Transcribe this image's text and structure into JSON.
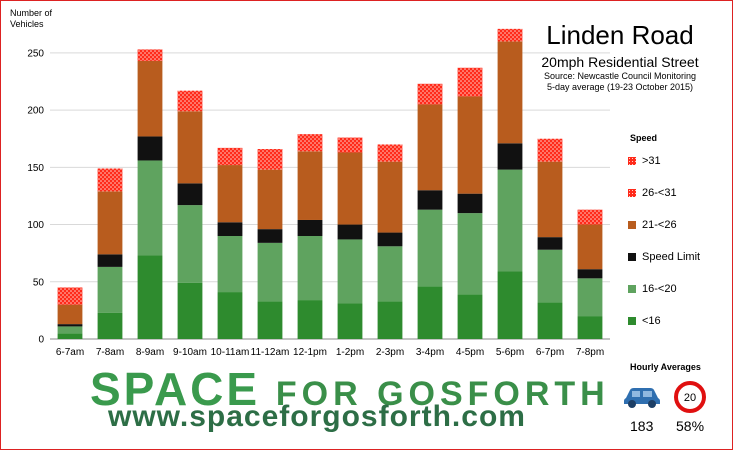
{
  "chart_data": {
    "type": "bar",
    "stacked": true,
    "title": "Linden Road",
    "subtitle": "20mph Residential Street",
    "source": "Source: Newcastle Council Monitoring",
    "period": "5-day average (19-23 October 2015)",
    "ylabel": "Number of Vehicles",
    "xlabel": "",
    "ylim": [
      0,
      270
    ],
    "yticks": [
      0,
      50,
      100,
      150,
      200,
      250
    ],
    "grid": true,
    "legend_title": "Speed",
    "legend_position": "right",
    "categories": [
      "6-7am",
      "7-8am",
      "8-9am",
      "9-10am",
      "10-11am",
      "11-12am",
      "12-1pm",
      "1-2pm",
      "2-3pm",
      "3-4pm",
      "4-5pm",
      "5-6pm",
      "6-7pm",
      "7-8pm"
    ],
    "series": [
      {
        "name": "<16",
        "color": "#2e8b2e",
        "values": [
          5,
          23,
          73,
          49,
          41,
          33,
          34,
          31,
          33,
          46,
          39,
          59,
          32,
          20
        ]
      },
      {
        "name": "16-<20",
        "color": "#5fa35f",
        "values": [
          6,
          40,
          83,
          68,
          49,
          51,
          56,
          56,
          48,
          67,
          71,
          89,
          46,
          33
        ]
      },
      {
        "name": "Speed Limit",
        "color": "#111111",
        "values": [
          2,
          11,
          21,
          19,
          12,
          12,
          14,
          13,
          12,
          17,
          17,
          23,
          11,
          8
        ]
      },
      {
        "name": "21-<26",
        "color": "#b85c1e",
        "values": [
          17,
          55,
          66,
          63,
          50,
          52,
          60,
          63,
          62,
          75,
          85,
          89,
          66,
          39
        ]
      },
      {
        "name": "26-<31",
        "color": "#e03a10",
        "values": [
          15,
          20,
          10,
          18,
          15,
          18,
          15,
          13,
          15,
          18,
          25,
          11,
          20,
          13
        ]
      },
      {
        "name": ">31",
        "color": "#ff1a1a",
        "values": [
          0,
          0,
          0,
          0,
          0,
          0,
          0,
          0,
          0,
          0,
          0,
          0,
          0,
          0
        ]
      }
    ]
  },
  "branding": {
    "line1_a": "SPACE",
    "line1_b": "FOR GOSFORTH",
    "line2": "www.spaceforgosforth.com"
  },
  "hourly_averages": {
    "title": "Hourly Averages",
    "car_icon": "car-icon",
    "speed_limit_sign": "20",
    "vehicle_count": "183",
    "speeding_percent": "58%"
  }
}
